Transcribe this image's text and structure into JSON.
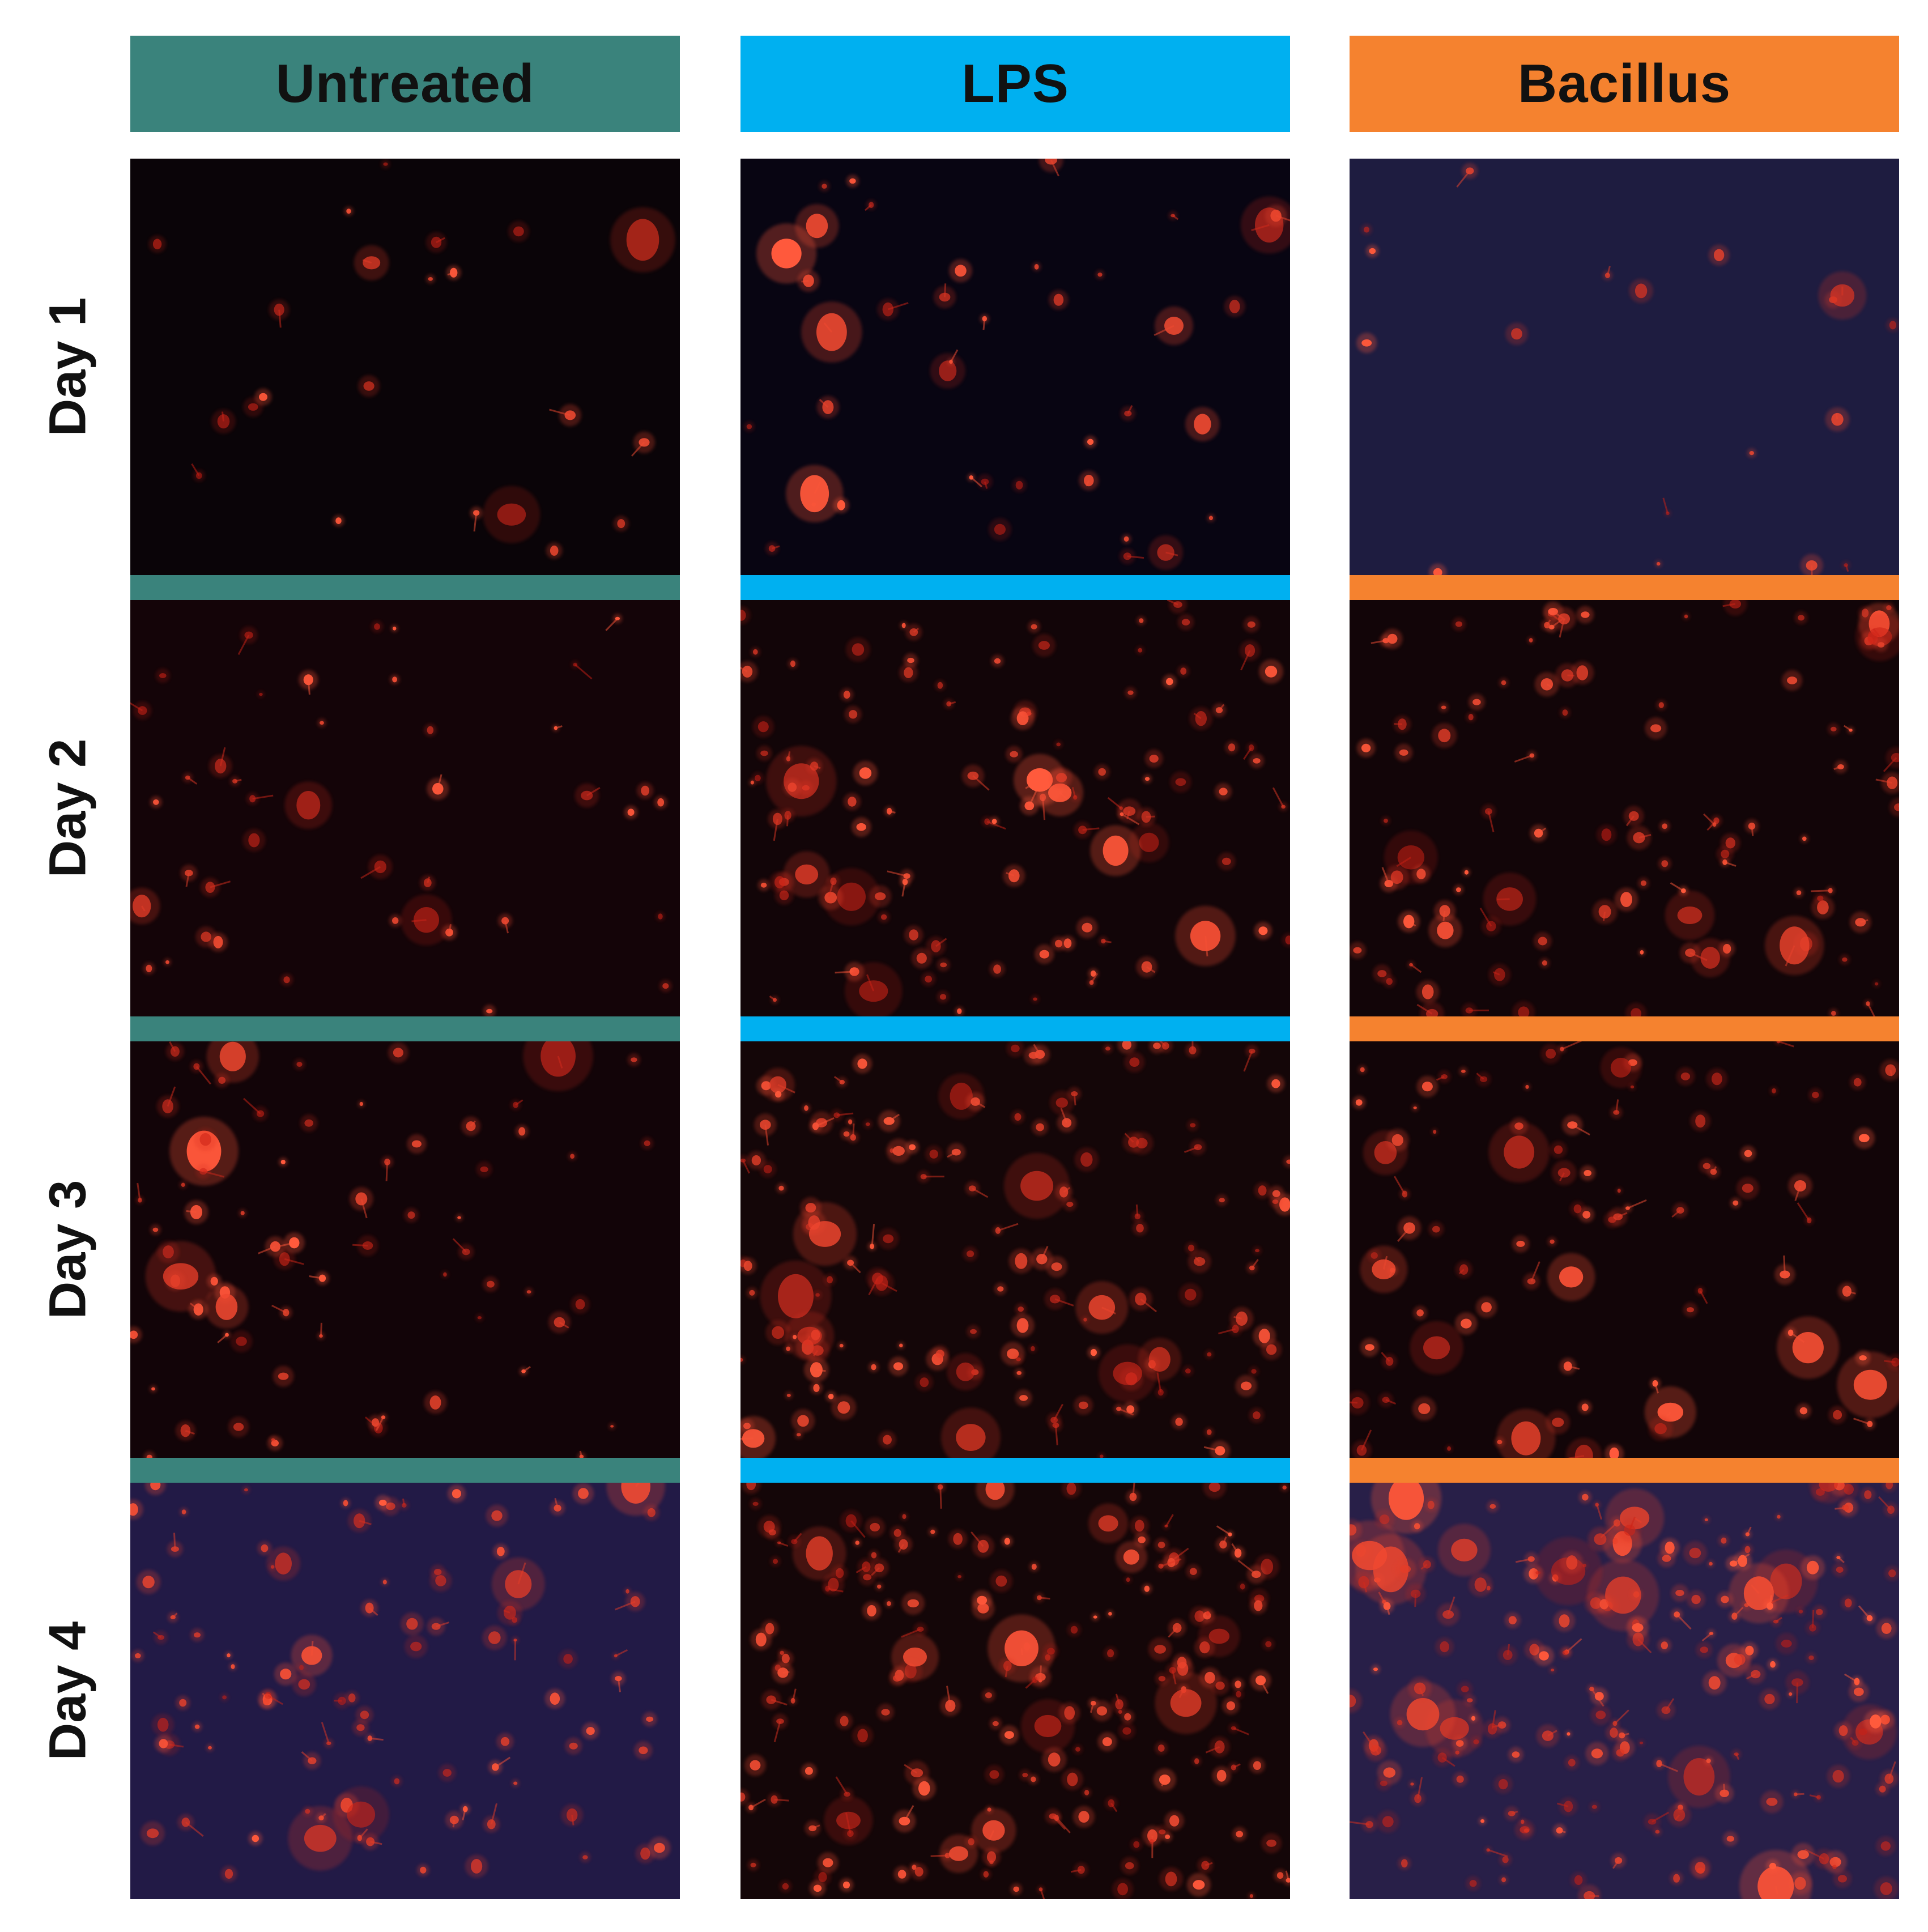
{
  "columns": [
    {
      "label": "Untreated",
      "color": "#3a837c"
    },
    {
      "label": "LPS",
      "color": "#00b0f0"
    },
    {
      "label": "Bacillus",
      "color": "#f5822f"
    }
  ],
  "rows": [
    {
      "label": "Day 1"
    },
    {
      "label": "Day 2"
    },
    {
      "label": "Day 3"
    },
    {
      "label": "Day 4"
    }
  ],
  "panels": [
    [
      {
        "background": "#0a0408",
        "density": 22
      },
      {
        "background": "#140408",
        "density": 42
      },
      {
        "background": "#120408",
        "density": 70
      },
      {
        "background": "#221a46",
        "density": 95
      }
    ],
    [
      {
        "background": "#080512",
        "density": 40
      },
      {
        "background": "#120508",
        "density": 110
      },
      {
        "background": "#140608",
        "density": 150
      },
      {
        "background": "#140608",
        "density": 190
      }
    ],
    [
      {
        "background": "#1e1c40",
        "density": 18
      },
      {
        "background": "#120508",
        "density": 100
      },
      {
        "background": "#120508",
        "density": 90
      },
      {
        "background": "#281f48",
        "density": 200
      }
    ]
  ]
}
